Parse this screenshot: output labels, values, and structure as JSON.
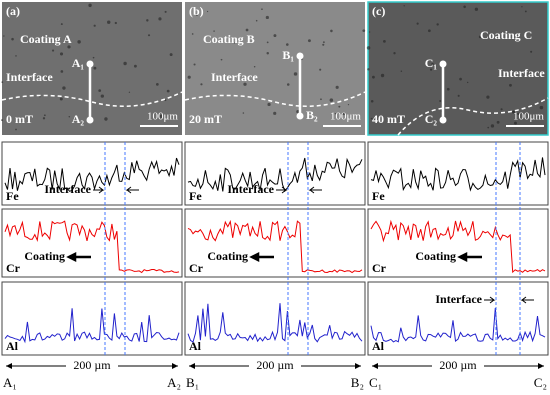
{
  "panels": [
    {
      "label": "(a)",
      "coating": "Coating A",
      "top_point": "A₁",
      "bottom_point": "A₂",
      "interface": "Interface",
      "field": "0 mT",
      "scale_bar": "100μm",
      "scans": [
        {
          "element": "Fe",
          "annotation": "Interface"
        },
        {
          "element": "Cr",
          "annotation": "Coating"
        },
        {
          "element": "Al"
        }
      ],
      "distance": "200 µm",
      "start": "A₁",
      "end": "A₂"
    },
    {
      "label": "(b)",
      "coating": "Coating B",
      "top_point": "B₁",
      "bottom_point": "B₂",
      "interface": "Interface",
      "field": "20 mT",
      "scale_bar": "100μm",
      "scans": [
        {
          "element": "Fe",
          "annotation": "Interface"
        },
        {
          "element": "Cr",
          "annotation": "Coating"
        },
        {
          "element": "Al"
        }
      ],
      "distance": "200 µm",
      "start": "B₁",
      "end": "B₂"
    },
    {
      "label": "(c)",
      "coating": "Coating C",
      "top_point": "C₁",
      "bottom_point": "C₂",
      "interface": "Interface",
      "field": "40 mT",
      "scale_bar": "100μm",
      "scans": [
        {
          "element": "Fe"
        },
        {
          "element": "Cr",
          "annotation": "Coating"
        },
        {
          "element": "Al",
          "annotation": "Interface"
        }
      ],
      "distance": "200 µm",
      "start": "C₁",
      "end": "C₂"
    }
  ]
}
